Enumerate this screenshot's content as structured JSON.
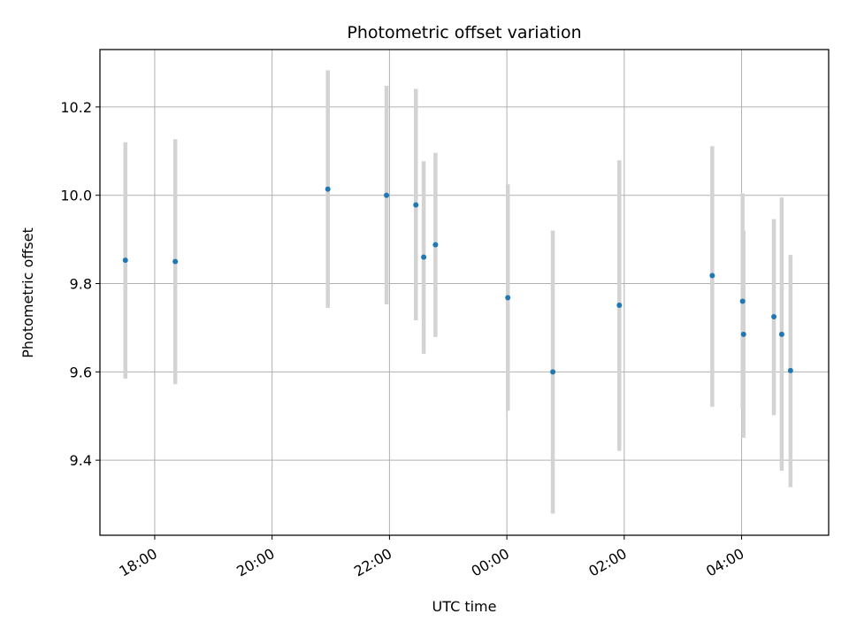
{
  "chart_data": {
    "type": "scatter",
    "title": "Photometric offset variation",
    "xlabel": "UTC time",
    "ylabel": "Photometric offset",
    "x_unit": "UTC time (hours from 00:00, negative = previous day)",
    "xlim": [
      "17:04",
      "05:29"
    ],
    "ylim": [
      9.23,
      10.33
    ],
    "grid": true,
    "x_ticks": [
      "18:00",
      "20:00",
      "22:00",
      "00:00",
      "02:00",
      "04:00"
    ],
    "y_ticks": [
      "9.4",
      "9.6",
      "9.8",
      "10.0",
      "10.2"
    ],
    "point_color": "#1f77b4",
    "errorbar_color": "#d3d3d3",
    "series": [
      {
        "points": [
          {
            "time": "17:30",
            "y": 9.853,
            "ylow": 9.585,
            "yhigh": 10.12
          },
          {
            "time": "18:21",
            "y": 9.85,
            "ylow": 9.572,
            "yhigh": 10.127
          },
          {
            "time": "20:57",
            "y": 10.014,
            "ylow": 9.745,
            "yhigh": 10.283
          },
          {
            "time": "21:57",
            "y": 10.0,
            "ylow": 9.753,
            "yhigh": 10.248
          },
          {
            "time": "22:27",
            "y": 9.978,
            "ylow": 9.717,
            "yhigh": 10.241
          },
          {
            "time": "22:35",
            "y": 9.86,
            "ylow": 9.641,
            "yhigh": 10.077
          },
          {
            "time": "22:47",
            "y": 9.888,
            "ylow": 9.679,
            "yhigh": 10.096
          },
          {
            "time": "00:01",
            "y": 9.768,
            "ylow": 9.512,
            "yhigh": 10.025
          },
          {
            "time": "00:47",
            "y": 9.6,
            "ylow": 9.279,
            "yhigh": 9.92
          },
          {
            "time": "01:55",
            "y": 9.751,
            "ylow": 9.421,
            "yhigh": 10.079
          },
          {
            "time": "03:30",
            "y": 9.818,
            "ylow": 9.521,
            "yhigh": 10.111
          },
          {
            "time": "04:01",
            "y": 9.76,
            "ylow": 9.517,
            "yhigh": 10.004
          },
          {
            "time": "04:02",
            "y": 9.685,
            "ylow": 9.451,
            "yhigh": 9.92
          },
          {
            "time": "04:33",
            "y": 9.725,
            "ylow": 9.502,
            "yhigh": 9.946
          },
          {
            "time": "04:41",
            "y": 9.685,
            "ylow": 9.376,
            "yhigh": 9.995
          },
          {
            "time": "04:50",
            "y": 9.603,
            "ylow": 9.339,
            "yhigh": 9.865
          }
        ]
      }
    ]
  }
}
